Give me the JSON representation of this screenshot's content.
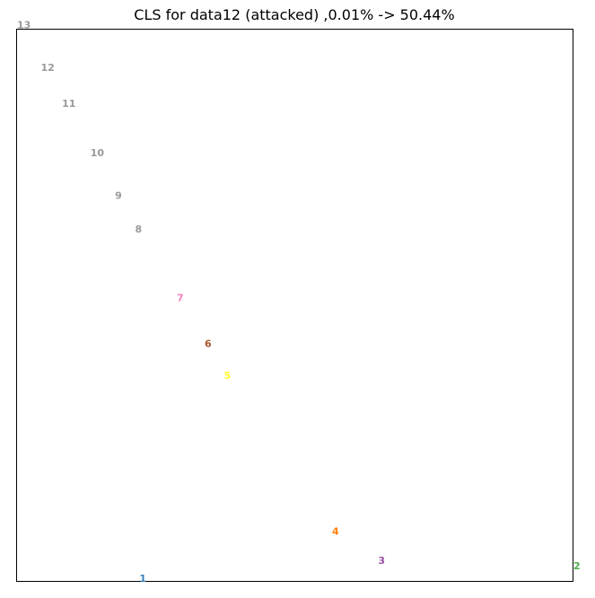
{
  "chart_data": {
    "type": "scatter",
    "title": "CLS for data12 (attacked) ,0.01% -> 50.44%",
    "xlabel": "",
    "ylabel": "",
    "grid": false,
    "axes_ticks_visible": false,
    "xlim": [
      0,
      100
    ],
    "ylim": [
      0,
      100
    ],
    "points": [
      {
        "label": "1",
        "x": 22.7,
        "y": 0.5,
        "color": "#377eb8"
      },
      {
        "label": "2",
        "x": 100.7,
        "y": 2.8,
        "color": "#4daf4a"
      },
      {
        "label": "3",
        "x": 65.6,
        "y": 3.7,
        "color": "#984ea3"
      },
      {
        "label": "4",
        "x": 57.3,
        "y": 9.0,
        "color": "#ff7f00"
      },
      {
        "label": "5",
        "x": 37.9,
        "y": 37.2,
        "color": "#ffff33"
      },
      {
        "label": "6",
        "x": 34.4,
        "y": 43.0,
        "color": "#a65628"
      },
      {
        "label": "7",
        "x": 29.4,
        "y": 51.3,
        "color": "#f781bf"
      },
      {
        "label": "8",
        "x": 21.9,
        "y": 63.7,
        "color": "#999999"
      },
      {
        "label": "9",
        "x": 18.3,
        "y": 69.8,
        "color": "#999999"
      },
      {
        "label": "10",
        "x": 14.5,
        "y": 77.6,
        "color": "#999999"
      },
      {
        "label": "11",
        "x": 9.4,
        "y": 86.5,
        "color": "#999999"
      },
      {
        "label": "12",
        "x": 5.6,
        "y": 93.0,
        "color": "#999999"
      },
      {
        "label": "13",
        "x": 1.3,
        "y": 100.7,
        "color": "#999999"
      }
    ]
  }
}
